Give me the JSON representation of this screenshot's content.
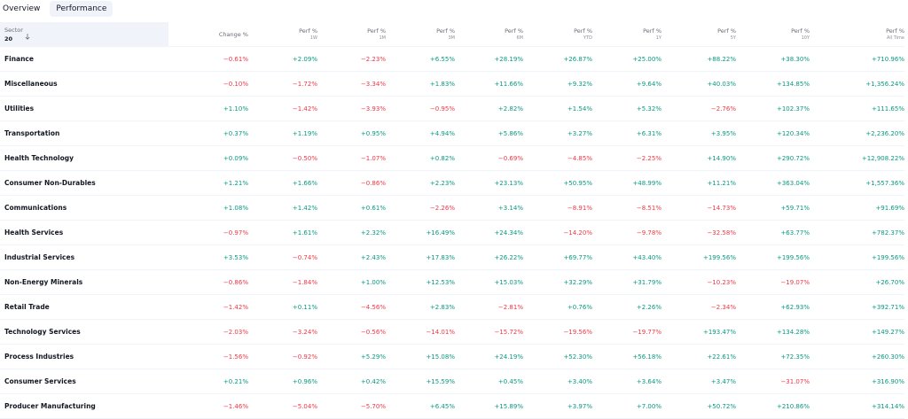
{
  "tabs": [
    "Overview",
    "Performance"
  ],
  "header": {
    "sector": "Sector",
    "count": "20",
    "columns": [
      {
        "title": "Change %"
      },
      {
        "title": "Perf %",
        "sub": "1W"
      },
      {
        "title": "Perf %",
        "sub": "1M"
      },
      {
        "title": "Perf %",
        "sub": "3M"
      },
      {
        "title": "Perf %",
        "sub": "6M"
      },
      {
        "title": "Perf %",
        "sub": "YTD"
      },
      {
        "title": "Perf %",
        "sub": "1Y"
      },
      {
        "title": "Perf %",
        "sub": "5Y"
      },
      {
        "title": "Perf %",
        "sub": "10Y"
      },
      {
        "title": "Perf %",
        "sub": "All Time"
      }
    ]
  },
  "rows": [
    [
      "Finance",
      "−0.61%",
      "+2.09%",
      "−2.23%",
      "+6.55%",
      "+28.19%",
      "+26.87%",
      "+25.00%",
      "+88.22%",
      "+38.30%",
      "+710.96%"
    ],
    [
      "Miscellaneous",
      "−0.10%",
      "−1.72%",
      "−3.34%",
      "+1.83%",
      "+11.66%",
      "+9.32%",
      "+9.64%",
      "+40.03%",
      "+134.85%",
      "+1,356.24%"
    ],
    [
      "Utilities",
      "+1.10%",
      "−1.42%",
      "−3.93%",
      "−0.95%",
      "+2.82%",
      "+1.54%",
      "+5.32%",
      "−2.76%",
      "+102.37%",
      "+111.65%"
    ],
    [
      "Transportation",
      "+0.37%",
      "+1.19%",
      "+0.95%",
      "+4.94%",
      "+5.86%",
      "+3.27%",
      "+6.31%",
      "+3.95%",
      "+120.34%",
      "+2,236.20%"
    ],
    [
      "Health Technology",
      "+0.09%",
      "−0.50%",
      "−1.07%",
      "+0.82%",
      "−0.69%",
      "−4.85%",
      "−2.25%",
      "+14.90%",
      "+290.72%",
      "+12,908.22%"
    ],
    [
      "Consumer Non-Durables",
      "+1.21%",
      "+1.66%",
      "−0.86%",
      "+2.23%",
      "+23.13%",
      "+50.95%",
      "+48.99%",
      "+11.21%",
      "+363.04%",
      "+1,557.36%"
    ],
    [
      "Communications",
      "+1.08%",
      "+1.42%",
      "+0.61%",
      "−2.26%",
      "+3.14%",
      "−8.91%",
      "−8.51%",
      "−14.73%",
      "+59.71%",
      "+91.69%"
    ],
    [
      "Health Services",
      "−0.97%",
      "+1.61%",
      "+2.32%",
      "+16.49%",
      "+24.34%",
      "−14.20%",
      "−9.78%",
      "−32.58%",
      "+63.77%",
      "+782.37%"
    ],
    [
      "Industrial Services",
      "+3.53%",
      "−0.74%",
      "+2.43%",
      "+17.83%",
      "+26.22%",
      "+69.77%",
      "+43.40%",
      "+199.56%",
      "+199.56%",
      "+199.56%"
    ],
    [
      "Non-Energy Minerals",
      "−0.86%",
      "−1.84%",
      "+1.00%",
      "+12.53%",
      "+15.03%",
      "+32.29%",
      "+31.79%",
      "−10.23%",
      "−19.07%",
      "+26.70%"
    ],
    [
      "Retail Trade",
      "−1.42%",
      "+0.11%",
      "−4.56%",
      "+2.83%",
      "−2.81%",
      "+0.76%",
      "+2.26%",
      "−2.34%",
      "+62.93%",
      "+392.71%"
    ],
    [
      "Technology Services",
      "−2.03%",
      "−3.24%",
      "−0.56%",
      "−14.01%",
      "−15.72%",
      "−19.56%",
      "−19.77%",
      "+193.47%",
      "+134.28%",
      "+149.27%"
    ],
    [
      "Process Industries",
      "−1.56%",
      "−0.92%",
      "+5.29%",
      "+15.08%",
      "+24.19%",
      "+52.30%",
      "+56.18%",
      "+22.61%",
      "+72.35%",
      "+260.30%"
    ],
    [
      "Consumer Services",
      "+0.21%",
      "+0.96%",
      "+0.42%",
      "+15.59%",
      "+0.45%",
      "+3.40%",
      "+3.64%",
      "+3.47%",
      "−31.07%",
      "+316.90%"
    ],
    [
      "Producer Manufacturing",
      "−1.46%",
      "−5.04%",
      "−5.70%",
      "+6.45%",
      "+15.89%",
      "+3.97%",
      "+7.00%",
      "+50.72%",
      "+210.86%",
      "+314.14%"
    ]
  ]
}
